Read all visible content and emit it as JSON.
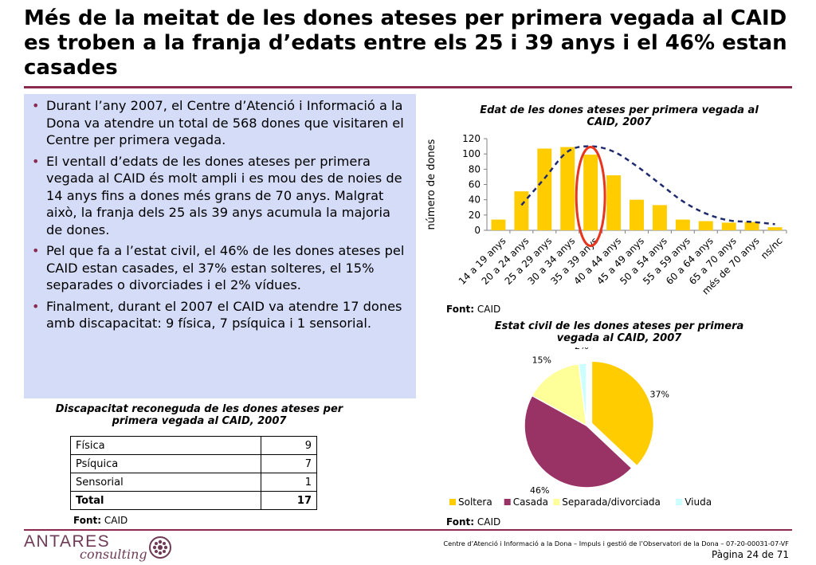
{
  "title": "Més de la meitat de les dones ateses per primera vegada al CAID es troben a la franja d’edats entre els 25 i 39 anys i el 46% estan casades",
  "bullets": [
    "Durant l’any 2007, el Centre d’Atenció i Informació a la Dona va atendre un total de 568 dones que visitaren el Centre per primera vegada.",
    "El ventall d’edats de les dones ateses per primera vegada al CAID és molt ampli i es mou des de noies de 14 anys fins a dones més grans de 70 anys. Malgrat això, la franja dels 25 als 39 anys acumula la majoria de dones.",
    "Pel que fa a l’estat civil, el 46% de les dones ateses pel CAID estan casades, el 37% estan solteres, el 15% separades o divorciades i el 2% vídues.",
    "Finalment, durant el 2007 el CAID va atendre 17 dones amb discapacitat: 9 física, 7 psíquica i 1 sensorial."
  ],
  "table": {
    "title": "Discapacitat reconeguda de les dones ateses per primera vegada al CAID, 2007",
    "rows": [
      {
        "label": "Física",
        "value": "9"
      },
      {
        "label": "Psíquica",
        "value": "7"
      },
      {
        "label": "Sensorial",
        "value": "1"
      }
    ],
    "total": {
      "label": "Total",
      "value": "17"
    },
    "source_label": "Font:",
    "source_value": "CAID"
  },
  "chart_data": [
    {
      "type": "bar",
      "title": "Edat de les dones ateses per primera vegada al CAID, 2007",
      "ylabel": "número de dones",
      "xlabel": "",
      "ylim": [
        0,
        120
      ],
      "yticks": [
        0,
        20,
        40,
        60,
        80,
        100,
        120
      ],
      "categories": [
        "14 a 19 anys",
        "20 a 24 anys",
        "25 a 29 anys",
        "30 a 34 anys",
        "35 a 39 anys",
        "40 a 44 anys",
        "45 a 49 anys",
        "50 a 54 anys",
        "55 a 59 anys",
        "60 a 64 anys",
        "65 a 70 anys",
        "més de 70 anys",
        "ns/nc"
      ],
      "values": [
        14,
        51,
        107,
        109,
        99,
        72,
        40,
        33,
        14,
        12,
        10,
        11,
        4
      ],
      "trend_line": [
        null,
        33,
        68,
        103,
        110,
        103,
        84,
        61,
        38,
        22,
        13,
        11,
        8
      ],
      "highlighted_category": "35 a 39 anys",
      "bar_color": "#ffcc00",
      "trend_color": "#1f2a6e",
      "highlight_color": "#e8351e",
      "source_label": "Font:",
      "source_value": "CAID"
    },
    {
      "type": "pie",
      "title": "Estat civil de les dones ateses per primera vegada al CAID, 2007",
      "slices": [
        {
          "name": "Soltera",
          "value": 37,
          "label": "37%",
          "color": "#ffcc00"
        },
        {
          "name": "Casada",
          "value": 46,
          "label": "46%",
          "color": "#993366"
        },
        {
          "name": "Separada/divorciada",
          "value": 15,
          "label": "15%",
          "color": "#ffff99"
        },
        {
          "name": "Viuda",
          "value": 2,
          "label": "2%",
          "color": "#ccffff"
        }
      ],
      "legend_position": "bottom",
      "source_label": "Font:",
      "source_value": "CAID"
    }
  ],
  "footer": {
    "logo_main": "ANTARES",
    "logo_sub": "consulting",
    "text": "Centre d’Atenció i Informació a la Dona – Impuls i gestió de l’Observatori de la Dona – 07-20-00031-07-VF",
    "page": "Pàgina 24 de 71"
  },
  "colors": {
    "accent": "#8b2a4f",
    "bullet_box": "#d5dcf7",
    "logo": "#6e3b56"
  }
}
